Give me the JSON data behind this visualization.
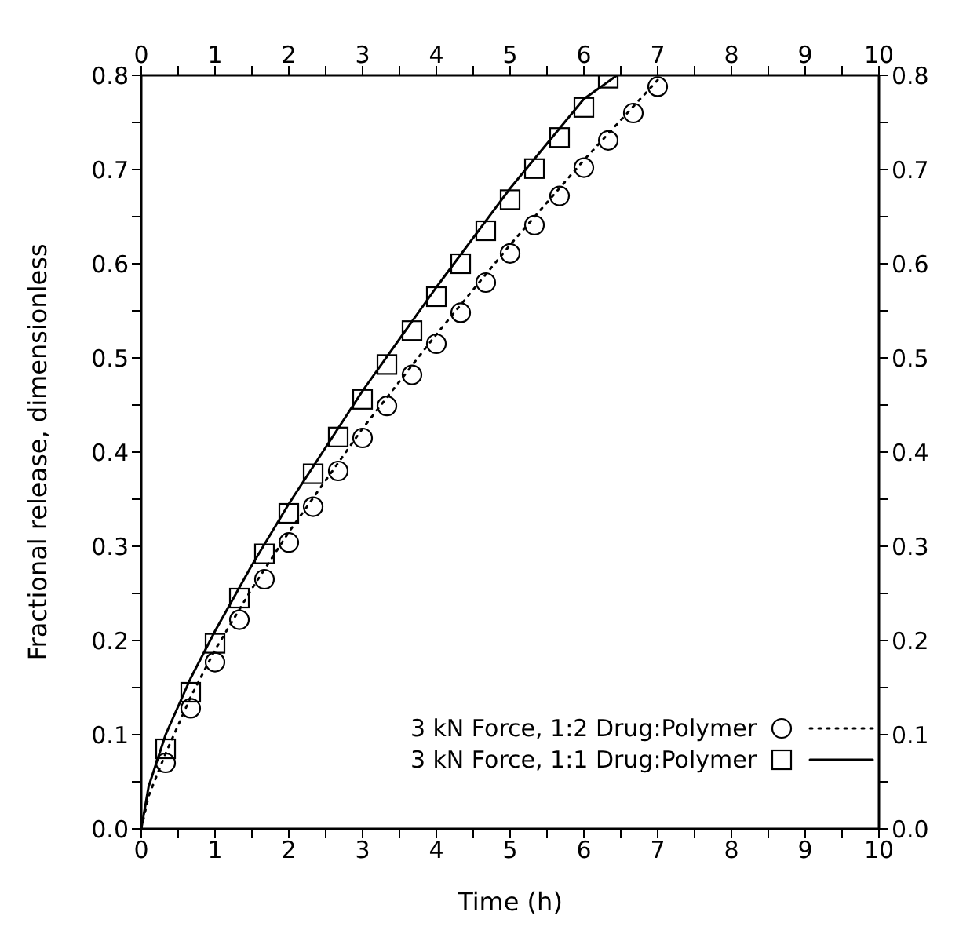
{
  "chart_data": {
    "type": "scatter",
    "xlabel": "Time (h)",
    "ylabel": "Fractional release, dimensionless",
    "xlim": [
      0,
      10
    ],
    "xticks": [
      0,
      {
        "value": 0.5,
        "label": null
      },
      1,
      {
        "value": 1.5,
        "label": null
      },
      2,
      {
        "value": 2.5,
        "label": null
      },
      3,
      {
        "value": 3.5,
        "label": null
      },
      4,
      {
        "value": 4.5,
        "label": null
      },
      5,
      {
        "value": 5.5,
        "label": null
      },
      6,
      {
        "value": 6.5,
        "label": null
      },
      7,
      {
        "value": 7.5,
        "label": null
      },
      8,
      {
        "value": 8.5,
        "label": null
      },
      9,
      {
        "value": 9.5,
        "label": null
      },
      10
    ],
    "x2lim": [
      0,
      10
    ],
    "x2ticks": [
      0,
      {
        "value": 0.5,
        "label": null
      },
      1,
      {
        "value": 1.5,
        "label": null
      },
      2,
      {
        "value": 2.5,
        "label": null
      },
      3,
      {
        "value": 3.5,
        "label": null
      },
      4,
      {
        "value": 4.5,
        "label": null
      },
      5,
      {
        "value": 5.5,
        "label": null
      },
      6,
      {
        "value": 6.5,
        "label": null
      },
      7,
      {
        "value": 7.5,
        "label": null
      },
      8,
      {
        "value": 8.5,
        "label": null
      },
      9,
      {
        "value": 9.5,
        "label": null
      },
      10
    ],
    "ylim": [
      0,
      0.8
    ],
    "yticks": [
      {
        "value": 0,
        "label": "0.0"
      },
      {
        "value": 0.05,
        "label": null
      },
      0.1,
      {
        "value": 0.15,
        "label": null
      },
      0.2,
      {
        "value": 0.25,
        "label": null
      },
      0.3,
      {
        "value": 0.35,
        "label": null
      },
      0.4,
      {
        "value": 0.45,
        "label": null
      },
      0.5,
      {
        "value": 0.55,
        "label": null
      },
      0.6,
      {
        "value": 0.65,
        "label": null
      },
      0.7,
      {
        "value": 0.75,
        "label": null
      },
      0.8
    ],
    "y2lim": [
      0,
      0.8
    ],
    "y2ticks": [
      {
        "value": 0,
        "label": "0.0"
      },
      {
        "value": 0.05,
        "label": null
      },
      0.1,
      {
        "value": 0.15,
        "label": null
      },
      0.2,
      {
        "value": 0.25,
        "label": null
      },
      0.3,
      {
        "value": 0.35,
        "label": null
      },
      0.4,
      {
        "value": 0.45,
        "label": null
      },
      0.5,
      {
        "value": 0.55,
        "label": null
      },
      0.6,
      {
        "value": 0.65,
        "label": null
      },
      0.7,
      {
        "value": 0.75,
        "label": null
      },
      0.8
    ],
    "grid": false,
    "legend": "bottom right",
    "series": [
      {
        "name": "3 kN Force, 1:2 Drug:Polymer",
        "marker": "circle",
        "color": "#000000",
        "x": [
          0.33,
          0.67,
          1,
          1.33,
          1.67,
          2,
          2.33,
          2.67,
          3,
          3.33,
          3.67,
          4,
          4.33,
          4.67,
          5,
          5.33,
          5.67,
          6,
          6.33,
          6.67,
          7
        ],
        "values": [
          0.07,
          0.128,
          0.177,
          0.222,
          0.265,
          0.304,
          0.342,
          0.38,
          0.415,
          0.449,
          0.482,
          0.515,
          0.548,
          0.58,
          0.611,
          0.641,
          0.672,
          0.702,
          0.731,
          0.76,
          0.788
        ]
      },
      {
        "type": "line",
        "marker": "none",
        "line_style": "dotted",
        "color": "#000000",
        "x": [
          0,
          0.1,
          0.33,
          0.67,
          1,
          1.5,
          2,
          3,
          4,
          5,
          6,
          7
        ],
        "values": [
          0,
          0.035,
          0.08,
          0.14,
          0.19,
          0.255,
          0.315,
          0.425,
          0.525,
          0.62,
          0.71,
          0.795
        ]
      },
      {
        "name": "3 kN Force, 1:1 Drug:Polymer",
        "marker": "square",
        "color": "#000000",
        "x": [
          0.33,
          0.67,
          1,
          1.33,
          1.67,
          2,
          2.33,
          2.67,
          3,
          3.33,
          3.67,
          4,
          4.33,
          4.67,
          5,
          5.33,
          5.67,
          6,
          6.33
        ],
        "values": [
          0.085,
          0.145,
          0.197,
          0.245,
          0.292,
          0.335,
          0.377,
          0.416,
          0.456,
          0.493,
          0.529,
          0.565,
          0.6,
          0.635,
          0.668,
          0.701,
          0.734,
          0.766,
          0.797
        ]
      },
      {
        "type": "line",
        "marker": "none",
        "line_style": "solid",
        "color": "#000000",
        "x": [
          0,
          0.1,
          0.33,
          0.67,
          1,
          1.5,
          2,
          3,
          4,
          5,
          6,
          6.45
        ],
        "values": [
          0,
          0.045,
          0.1,
          0.16,
          0.21,
          0.28,
          0.345,
          0.465,
          0.575,
          0.68,
          0.775,
          0.8
        ]
      }
    ]
  }
}
